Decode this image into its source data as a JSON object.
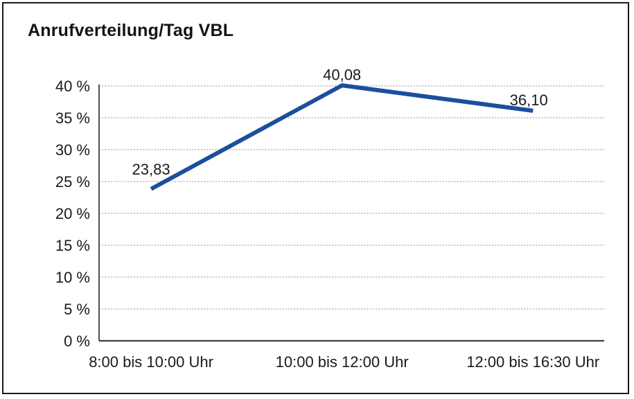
{
  "chart_data": {
    "type": "line",
    "title": "Anrufverteilung/Tag VBL",
    "categories": [
      "8:00 bis 10:00 Uhr",
      "10:00 bis 12:00 Uhr",
      "12:00 bis 16:30 Uhr"
    ],
    "values": [
      23.83,
      40.08,
      36.1
    ],
    "point_labels": [
      "23,83",
      "40,08",
      "36,10"
    ],
    "ytick_labels": [
      "0 %",
      "5 %",
      "10 %",
      "15 %",
      "20 %",
      "25 %",
      "30 %",
      "35 %",
      "40 %"
    ],
    "ylim": [
      0,
      40
    ],
    "ystep": 5,
    "xlabel": "",
    "ylabel": "",
    "grid": "horizontal-dotted",
    "legend": "none",
    "colors": {
      "line": "#1a4f9c",
      "text": "#1a1a1a",
      "grid": "#8f8f8f",
      "axis": "#3d3d3d",
      "frame": "#1a1a1a",
      "background": "#ffffff"
    }
  }
}
